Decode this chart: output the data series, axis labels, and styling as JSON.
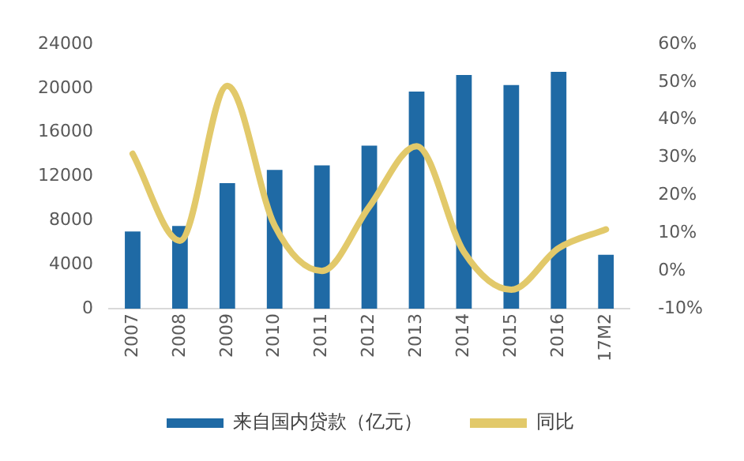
{
  "chart_data": {
    "type": "bar",
    "categories": [
      "2007",
      "2008",
      "2009",
      "2010",
      "2011",
      "2012",
      "2013",
      "2014",
      "2015",
      "2016",
      "17M2"
    ],
    "series": [
      {
        "name": "来自国内贷款（亿元）",
        "color": "#1f6aa5",
        "values": [
          7000,
          7500,
          11400,
          12600,
          13000,
          14800,
          19700,
          21200,
          20300,
          21500,
          4900
        ]
      },
      {
        "name": "同比",
        "type": "line",
        "axis": "y2",
        "color": "#e2c96a",
        "values": [
          31,
          8,
          49,
          12,
          0,
          17,
          33,
          5,
          -5,
          6,
          11
        ]
      }
    ],
    "ylim": [
      0,
      24000
    ],
    "yticks": [
      0,
      4000,
      8000,
      12000,
      16000,
      20000,
      24000
    ],
    "y2lim": [
      -10,
      60
    ],
    "y2ticks": [
      {
        "value": -10,
        "label": "-10%"
      },
      {
        "value": 0,
        "label": "0%"
      },
      {
        "value": 10,
        "label": "10%"
      },
      {
        "value": 20,
        "label": "20%"
      },
      {
        "value": 30,
        "label": "30%"
      },
      {
        "value": 40,
        "label": "40%"
      },
      {
        "value": 50,
        "label": "50%"
      },
      {
        "value": 60,
        "label": "60%"
      }
    ],
    "grid": false,
    "legend": "bottom"
  }
}
